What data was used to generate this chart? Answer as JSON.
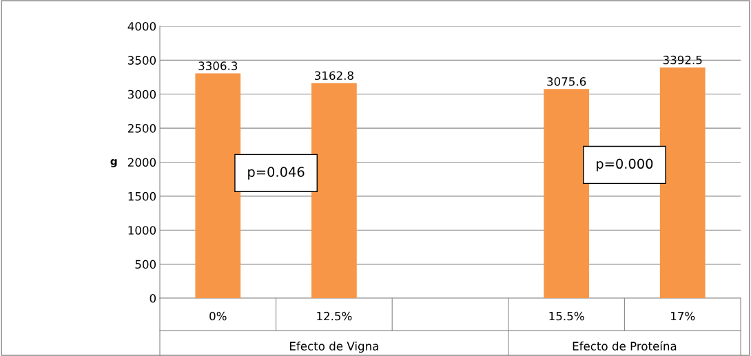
{
  "chart_data": {
    "type": "bar",
    "ylabel": "g",
    "categories": [
      "0%",
      "12.5%",
      null,
      "15.5%",
      "17%"
    ],
    "values": [
      3306.3,
      3162.8,
      null,
      3075.6,
      3392.5
    ],
    "color": "#f79646",
    "ylim": [
      0,
      4000
    ],
    "yticks": [
      0,
      500,
      1000,
      1500,
      2000,
      2500,
      3000,
      3500,
      4000
    ],
    "grid": "y",
    "data_labels": true,
    "annotations": [
      "p=0.046",
      "p=0.000",
      "Efecto de Vigna",
      "Efecto de Proteína"
    ]
  }
}
